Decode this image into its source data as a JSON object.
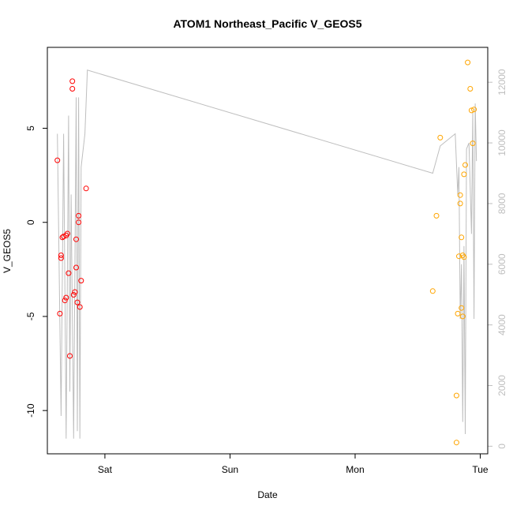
{
  "chart_data": {
    "type": "scatter",
    "title": "ATOM1 Northeast_Pacific V_GEOS5",
    "xlabel": "Date",
    "ylabel": "V_GEOS5",
    "x_unit": "days",
    "x_ticks": [
      {
        "value": 0.0,
        "label": "Sat"
      },
      {
        "value": 1.0,
        "label": "Sun"
      },
      {
        "value": 2.0,
        "label": "Mon"
      },
      {
        "value": 3.0,
        "label": "Tue"
      }
    ],
    "xlim": [
      -0.46,
      3.06
    ],
    "y_ticks": [
      -10,
      -5,
      0,
      5
    ],
    "ylim": [
      -12.3,
      9.3
    ],
    "y2_ticks": [
      0,
      2000,
      4000,
      6000,
      8000,
      10000,
      12000
    ],
    "y2lim": [
      -250,
      13150
    ],
    "series": [
      {
        "color": "#ff0000",
        "points": [
          [
            -0.38,
            3.3
          ],
          [
            -0.36,
            -4.85
          ],
          [
            -0.35,
            -1.9
          ],
          [
            -0.35,
            -1.75
          ],
          [
            -0.34,
            -0.8
          ],
          [
            -0.33,
            -0.75
          ],
          [
            -0.32,
            -4.15
          ],
          [
            -0.31,
            -4.0
          ],
          [
            -0.31,
            -0.7
          ],
          [
            -0.3,
            -0.6
          ],
          [
            -0.29,
            -2.7
          ],
          [
            -0.28,
            -7.1
          ],
          [
            -0.26,
            7.5
          ],
          [
            -0.26,
            7.1
          ],
          [
            -0.25,
            -3.85
          ],
          [
            -0.24,
            -3.7
          ],
          [
            -0.23,
            -2.4
          ],
          [
            -0.23,
            -0.9
          ],
          [
            -0.22,
            -4.25
          ],
          [
            -0.21,
            0.35
          ],
          [
            -0.21,
            0.0
          ],
          [
            -0.2,
            -4.5
          ],
          [
            -0.19,
            -3.1
          ],
          [
            -0.15,
            1.8
          ]
        ]
      },
      {
        "color": "#ffa500",
        "points": [
          [
            2.62,
            -3.65
          ],
          [
            2.65,
            0.35
          ],
          [
            2.68,
            4.5
          ],
          [
            2.81,
            -11.7
          ],
          [
            2.81,
            -9.2
          ],
          [
            2.82,
            -4.85
          ],
          [
            2.83,
            -1.8
          ],
          [
            2.84,
            1.0
          ],
          [
            2.84,
            1.45
          ],
          [
            2.85,
            -4.55
          ],
          [
            2.85,
            -0.8
          ],
          [
            2.86,
            -5.0
          ],
          [
            2.86,
            -1.75
          ],
          [
            2.87,
            -1.85
          ],
          [
            2.87,
            2.55
          ],
          [
            2.88,
            3.05
          ],
          [
            2.9,
            8.5
          ],
          [
            2.92,
            7.1
          ],
          [
            2.93,
            5.95
          ],
          [
            2.94,
            4.2
          ],
          [
            2.95,
            6.0
          ]
        ]
      }
    ],
    "altitude_series": {
      "color": "#bebebe",
      "axis": "right",
      "points": [
        [
          -0.38,
          10300
        ],
        [
          -0.35,
          1000
        ],
        [
          -0.33,
          10300
        ],
        [
          -0.31,
          250
        ],
        [
          -0.29,
          10900
        ],
        [
          -0.28,
          1800
        ],
        [
          -0.27,
          8300
        ],
        [
          -0.25,
          250
        ],
        [
          -0.23,
          11500
        ],
        [
          -0.22,
          500
        ],
        [
          -0.21,
          11500
        ],
        [
          -0.2,
          250
        ],
        [
          -0.19,
          9200
        ],
        [
          -0.16,
          10300
        ],
        [
          -0.14,
          12400
        ],
        [
          2.62,
          9000
        ],
        [
          2.68,
          9900
        ],
        [
          2.8,
          10300
        ],
        [
          2.82,
          8300
        ],
        [
          2.83,
          9200
        ],
        [
          2.84,
          4200
        ],
        [
          2.85,
          6000
        ],
        [
          2.86,
          800
        ],
        [
          2.87,
          6600
        ],
        [
          2.88,
          400
        ],
        [
          2.89,
          9800
        ],
        [
          2.91,
          10000
        ],
        [
          2.93,
          7000
        ],
        [
          2.94,
          11000
        ],
        [
          2.95,
          4200
        ],
        [
          2.96,
          11300
        ],
        [
          2.97,
          9400
        ]
      ]
    }
  }
}
